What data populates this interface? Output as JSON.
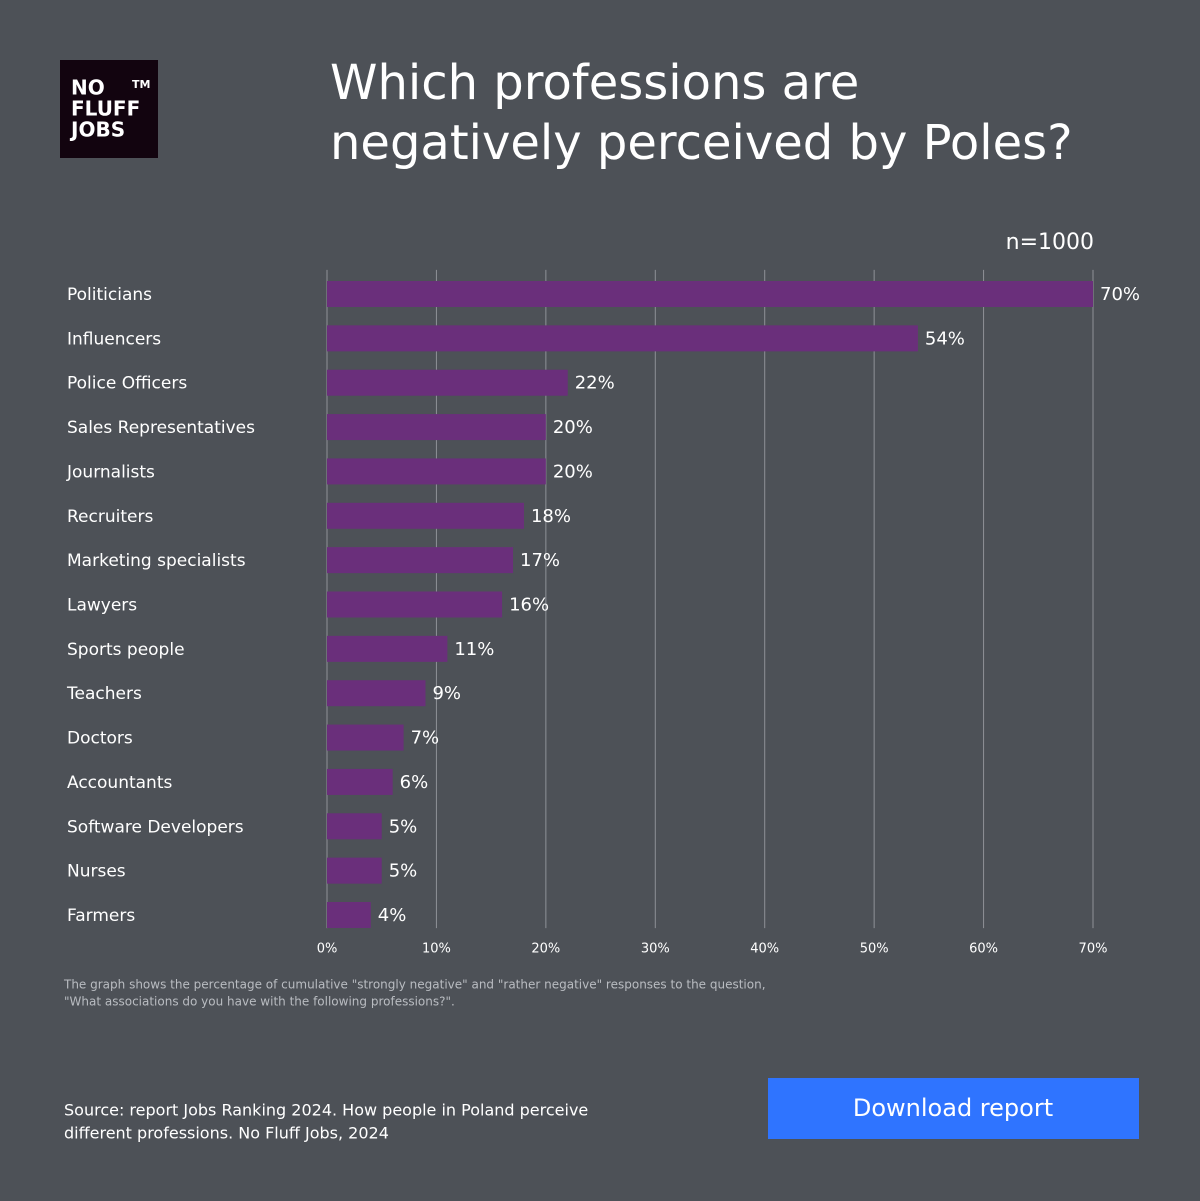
{
  "logo": {
    "lines": [
      "NO",
      "FLUFF",
      "JOBS"
    ],
    "mark": "TM"
  },
  "button": {
    "label": "Download report"
  },
  "chart_data": {
    "type": "bar",
    "orientation": "horizontal",
    "title": [
      "Which professions are",
      "negatively perceived by Poles?"
    ],
    "subtitle": "n=1000",
    "categories": [
      "Politicians",
      "Influencers",
      "Police Officers",
      "Sales Representatives",
      "Journalists",
      "Recruiters",
      "Marketing specialists",
      "Lawyers",
      "Sports people",
      "Teachers",
      "Doctors",
      "Accountants",
      "Software Developers",
      "Nurses",
      "Farmers"
    ],
    "values": [
      70,
      54,
      22,
      20,
      20,
      18,
      17,
      16,
      11,
      9,
      7,
      6,
      5,
      5,
      4
    ],
    "value_labels": [
      "70%",
      "54%",
      "22%",
      "20%",
      "20%",
      "18%",
      "17%",
      "16%",
      "11%",
      "9%",
      "7%",
      "6%",
      "5%",
      "5%",
      "4%"
    ],
    "color": "#6a2f7b",
    "xlim": [
      0,
      70
    ],
    "xticks": [
      {
        "value": 0,
        "label": "0%"
      },
      {
        "value": 10,
        "label": "10%"
      },
      {
        "value": 20,
        "label": "20%"
      },
      {
        "value": 30,
        "label": "30%"
      },
      {
        "value": 40,
        "label": "40%"
      },
      {
        "value": 50,
        "label": "50%"
      },
      {
        "value": 60,
        "label": "60%"
      },
      {
        "value": 70,
        "label": "70%"
      }
    ],
    "grid": true,
    "note": [
      "The graph shows the percentage of cumulative \"strongly negative\" and \"rather negative\" responses to the question,",
      "\"What associations do you have with the following professions?\"."
    ],
    "source": [
      "Source: report Jobs Ranking 2024. How people in Poland perceive",
      "different professions. No Fluff Jobs, 2024"
    ]
  }
}
